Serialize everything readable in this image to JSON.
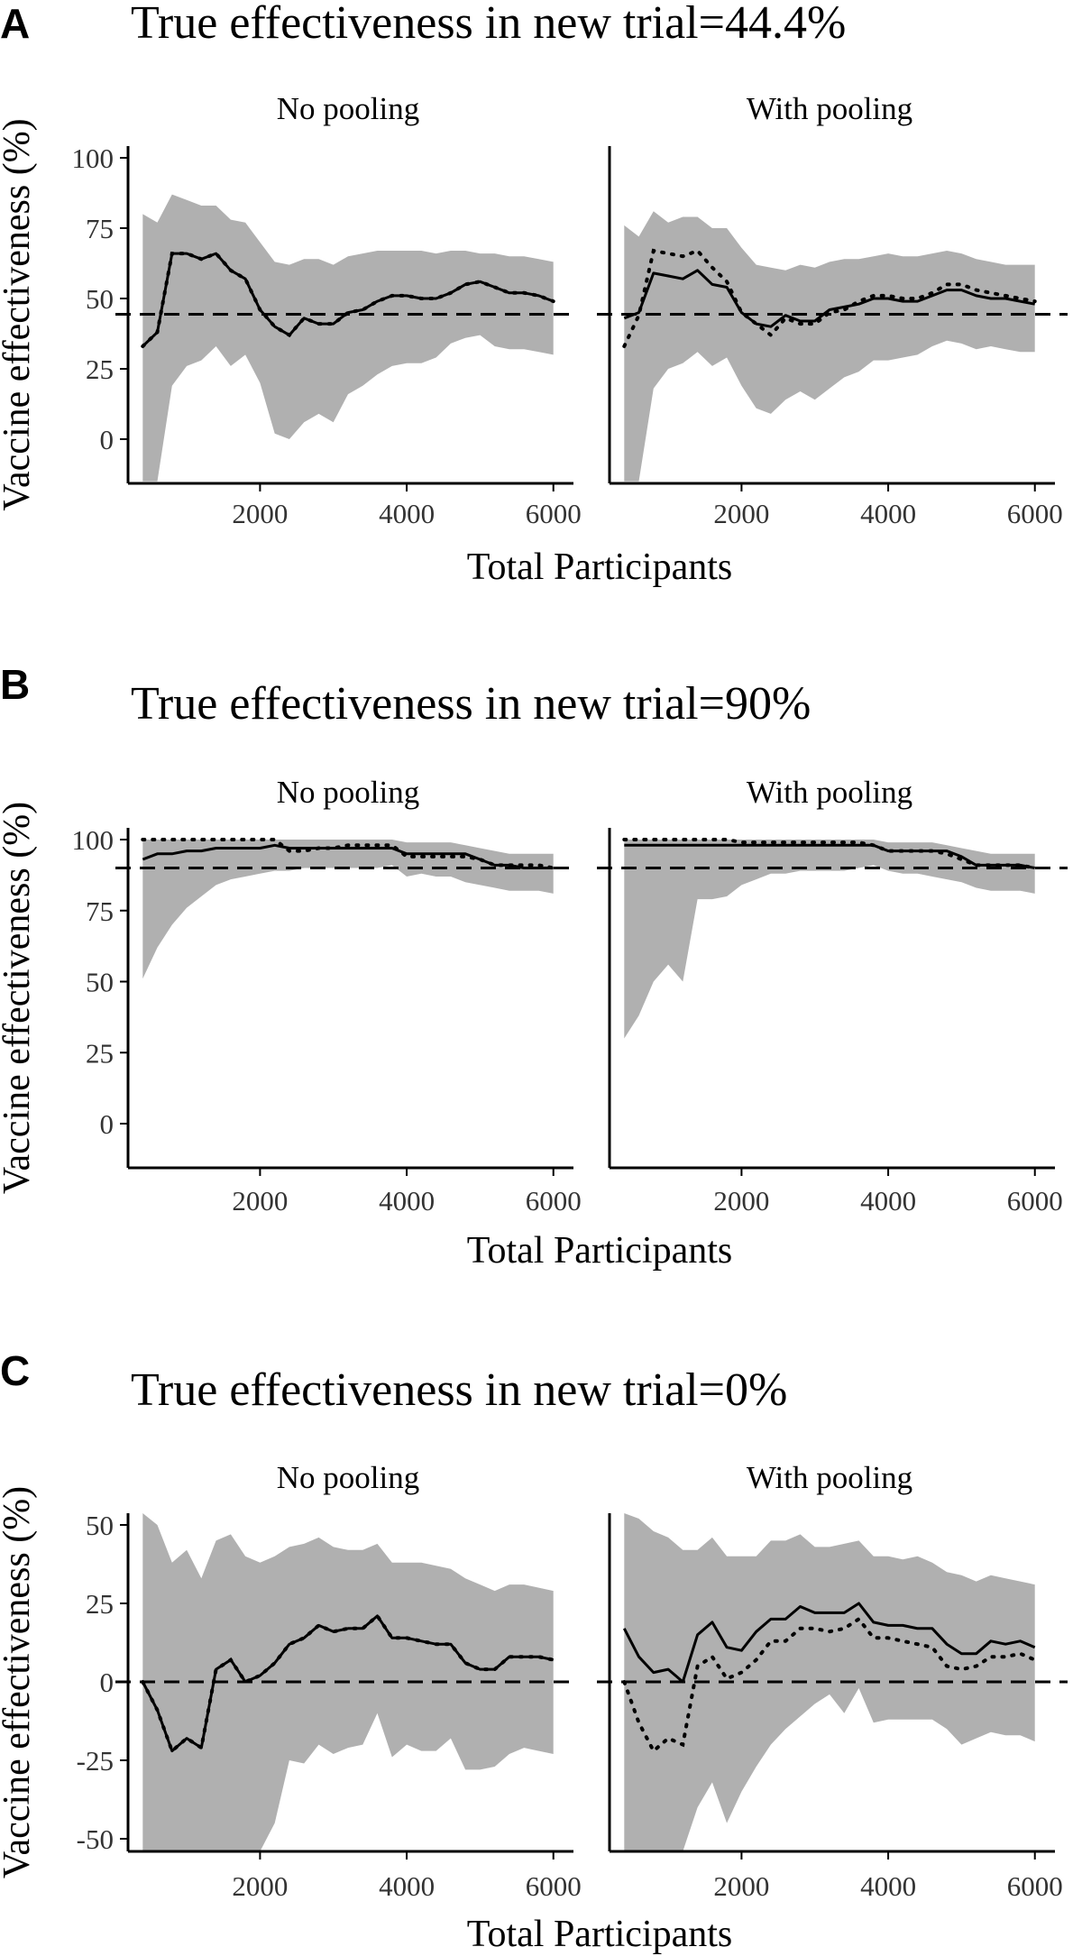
{
  "figure": {
    "x_axis_title": "Total Participants",
    "y_axis_title": "Vaccine effectiveness (%)"
  },
  "chart_data": [
    {
      "type": "line",
      "panel_letter": "A",
      "title": "True effectiveness in new trial=44.4%",
      "xlabel": "Total Participants",
      "ylabel": "Vaccine effectiveness (%)",
      "xlim": [
        200,
        6200
      ],
      "ylim": [
        -15,
        105
      ],
      "x_ticks": [
        2000,
        4000,
        6000
      ],
      "y_ticks": [
        0,
        25,
        50,
        75,
        100
      ],
      "reference_line": 44.4,
      "facets": [
        {
          "label": "No pooling",
          "x": [
            400,
            600,
            800,
            1000,
            1200,
            1400,
            1600,
            1800,
            2000,
            2200,
            2400,
            2600,
            2800,
            3000,
            3200,
            3400,
            3600,
            3800,
            4000,
            4200,
            4400,
            4600,
            4800,
            5000,
            5200,
            5400,
            5600,
            5800,
            6000
          ],
          "band_upper": [
            80,
            77,
            87,
            85,
            83,
            83,
            78,
            77,
            70,
            63,
            62,
            64,
            64,
            62,
            65,
            66,
            67,
            67,
            67,
            67,
            66,
            67,
            67,
            66,
            66,
            65,
            65,
            64,
            63
          ],
          "band_lower": [
            -15,
            -15,
            19,
            26,
            28,
            33,
            26,
            30,
            20,
            2,
            0,
            6,
            9,
            6,
            16,
            19,
            23,
            26,
            27,
            27,
            29,
            34,
            36,
            37,
            33,
            32,
            32,
            31,
            30
          ],
          "series": [
            {
              "style": "solid",
              "values": [
                33,
                38,
                66,
                66,
                64,
                66,
                60,
                57,
                46,
                40,
                37,
                43,
                41,
                41,
                45,
                46,
                49,
                51,
                51,
                50,
                50,
                52,
                55,
                56,
                54,
                52,
                52,
                51,
                49
              ]
            },
            {
              "style": "dotted",
              "values": [
                33,
                38,
                66,
                66,
                64,
                66,
                60,
                57,
                46,
                40,
                37,
                43,
                41,
                41,
                45,
                46,
                49,
                51,
                51,
                50,
                50,
                52,
                55,
                56,
                54,
                52,
                52,
                51,
                49
              ]
            }
          ]
        },
        {
          "label": "With pooling",
          "x": [
            400,
            600,
            800,
            1000,
            1200,
            1400,
            1600,
            1800,
            2000,
            2200,
            2400,
            2600,
            2800,
            3000,
            3200,
            3400,
            3600,
            3800,
            4000,
            4200,
            4400,
            4600,
            4800,
            5000,
            5200,
            5400,
            5600,
            5800,
            6000
          ],
          "band_upper": [
            76,
            72,
            81,
            77,
            79,
            79,
            75,
            75,
            68,
            62,
            61,
            60,
            62,
            61,
            63,
            64,
            64,
            65,
            66,
            65,
            65,
            66,
            67,
            66,
            64,
            63,
            62,
            62,
            62
          ],
          "band_lower": [
            -15,
            -15,
            18,
            25,
            27,
            31,
            26,
            29,
            19,
            11,
            9,
            14,
            17,
            14,
            18,
            22,
            24,
            28,
            28,
            29,
            30,
            33,
            35,
            34,
            32,
            33,
            32,
            31,
            31
          ],
          "series": [
            {
              "style": "solid",
              "values": [
                43,
                45,
                59,
                58,
                57,
                60,
                55,
                54,
                45,
                41,
                40,
                44,
                42,
                42,
                46,
                47,
                48,
                50,
                50,
                49,
                49,
                51,
                53,
                53,
                51,
                50,
                50,
                49,
                48
              ]
            },
            {
              "style": "dotted",
              "values": [
                33,
                44,
                67,
                66,
                65,
                67,
                61,
                56,
                45,
                41,
                37,
                43,
                41,
                41,
                45,
                46,
                49,
                51,
                51,
                50,
                50,
                52,
                55,
                55,
                53,
                52,
                51,
                50,
                49
              ]
            }
          ]
        }
      ]
    },
    {
      "type": "line",
      "panel_letter": "B",
      "title": "True effectiveness in new trial=90%",
      "xlabel": "Total Participants",
      "ylabel": "Vaccine effectiveness (%)",
      "xlim": [
        200,
        6200
      ],
      "ylim": [
        -15,
        105
      ],
      "x_ticks": [
        2000,
        4000,
        6000
      ],
      "y_ticks": [
        0,
        25,
        50,
        75,
        100
      ],
      "reference_line": 90,
      "facets": [
        {
          "label": "No pooling",
          "x": [
            400,
            600,
            800,
            1000,
            1200,
            1400,
            1600,
            1800,
            2000,
            2200,
            2400,
            2600,
            2800,
            3000,
            3200,
            3400,
            3600,
            3800,
            4000,
            4200,
            4400,
            4600,
            4800,
            5000,
            5200,
            5400,
            5600,
            5800,
            6000
          ],
          "band_upper": [
            100,
            100,
            100,
            100,
            100,
            100,
            100,
            100,
            100,
            100,
            100,
            100,
            100,
            100,
            100,
            100,
            100,
            100,
            99,
            99,
            99,
            99,
            98,
            97,
            96,
            95,
            95,
            95,
            95
          ],
          "band_lower": [
            51,
            62,
            70,
            76,
            80,
            84,
            86,
            87,
            88,
            89,
            89,
            90,
            90,
            90,
            90,
            90,
            90,
            91,
            87,
            88,
            87,
            87,
            85,
            84,
            83,
            82,
            82,
            82,
            81
          ],
          "series": [
            {
              "style": "solid",
              "values": [
                93,
                95,
                95,
                96,
                96,
                97,
                97,
                97,
                97,
                98,
                97,
                97,
                97,
                97,
                97,
                97,
                97,
                97,
                95,
                95,
                95,
                95,
                95,
                93,
                91,
                91,
                90,
                90,
                90
              ]
            },
            {
              "style": "dotted",
              "values": [
                100,
                100,
                100,
                100,
                100,
                100,
                100,
                100,
                100,
                100,
                96,
                96,
                97,
                97,
                98,
                98,
                98,
                98,
                94,
                94,
                94,
                94,
                94,
                93,
                91,
                91,
                91,
                91,
                90
              ]
            }
          ]
        },
        {
          "label": "With pooling",
          "x": [
            400,
            600,
            800,
            1000,
            1200,
            1400,
            1600,
            1800,
            2000,
            2200,
            2400,
            2600,
            2800,
            3000,
            3200,
            3400,
            3600,
            3800,
            4000,
            4200,
            4400,
            4600,
            4800,
            5000,
            5200,
            5400,
            5600,
            5800,
            6000
          ],
          "band_upper": [
            100,
            100,
            100,
            100,
            100,
            100,
            100,
            100,
            100,
            100,
            100,
            100,
            100,
            100,
            100,
            100,
            100,
            100,
            99,
            99,
            99,
            99,
            98,
            97,
            96,
            95,
            95,
            95,
            95
          ],
          "band_lower": [
            30,
            38,
            50,
            56,
            50,
            79,
            79,
            80,
            84,
            86,
            88,
            88,
            89,
            89,
            89,
            89,
            90,
            91,
            89,
            88,
            88,
            87,
            86,
            85,
            83,
            82,
            82,
            82,
            81
          ],
          "series": [
            {
              "style": "solid",
              "values": [
                98,
                98,
                98,
                98,
                98,
                98,
                98,
                98,
                98,
                98,
                98,
                98,
                98,
                98,
                98,
                98,
                98,
                98,
                96,
                96,
                96,
                96,
                96,
                94,
                91,
                91,
                91,
                91,
                90
              ]
            },
            {
              "style": "dotted",
              "values": [
                100,
                100,
                100,
                100,
                100,
                100,
                100,
                100,
                99,
                99,
                99,
                99,
                99,
                99,
                99,
                99,
                99,
                98,
                96,
                96,
                96,
                96,
                95,
                93,
                91,
                91,
                91,
                91,
                90
              ]
            }
          ]
        }
      ]
    },
    {
      "type": "line",
      "panel_letter": "C",
      "title": "True effectiveness in new trial=0%",
      "xlabel": "Total Participants",
      "ylabel": "Vaccine effectiveness (%)",
      "xlim": [
        200,
        6200
      ],
      "ylim": [
        -55,
        55
      ],
      "x_ticks": [
        2000,
        4000,
        6000
      ],
      "y_ticks": [
        -50,
        -25,
        0,
        25,
        50
      ],
      "reference_line": 0,
      "facets": [
        {
          "label": "No pooling",
          "x": [
            400,
            600,
            800,
            1000,
            1200,
            1400,
            1600,
            1800,
            2000,
            2200,
            2400,
            2600,
            2800,
            3000,
            3200,
            3400,
            3600,
            3800,
            4000,
            4200,
            4400,
            4600,
            4800,
            5000,
            5200,
            5400,
            5600,
            5800,
            6000
          ],
          "band_upper": [
            55,
            50,
            38,
            42,
            33,
            45,
            47,
            40,
            38,
            40,
            43,
            44,
            46,
            43,
            42,
            42,
            44,
            38,
            38,
            38,
            37,
            36,
            33,
            31,
            29,
            31,
            31,
            30,
            29
          ],
          "band_lower": [
            -55,
            -55,
            -55,
            -55,
            -55,
            -55,
            -55,
            -55,
            -55,
            -45,
            -25,
            -26,
            -20,
            -23,
            -21,
            -20,
            -10,
            -24,
            -20,
            -22,
            -22,
            -18,
            -28,
            -28,
            -27,
            -23,
            -21,
            -22,
            -23
          ],
          "series": [
            {
              "style": "solid",
              "values": [
                0,
                -9,
                -22,
                -18,
                -21,
                4,
                7,
                0,
                2,
                6,
                12,
                14,
                18,
                16,
                17,
                17,
                21,
                14,
                14,
                13,
                12,
                12,
                6,
                4,
                4,
                8,
                8,
                8,
                7
              ]
            },
            {
              "style": "dotted",
              "values": [
                0,
                -9,
                -22,
                -18,
                -21,
                4,
                7,
                0,
                2,
                6,
                12,
                14,
                18,
                16,
                17,
                17,
                21,
                14,
                14,
                13,
                12,
                12,
                6,
                4,
                4,
                8,
                8,
                8,
                7
              ]
            }
          ]
        },
        {
          "label": "With pooling",
          "x": [
            400,
            600,
            800,
            1000,
            1200,
            1400,
            1600,
            1800,
            2000,
            2200,
            2400,
            2600,
            2800,
            3000,
            3200,
            3400,
            3600,
            3800,
            4000,
            4200,
            4400,
            4600,
            4800,
            5000,
            5200,
            5400,
            5600,
            5800,
            6000
          ],
          "band_upper": [
            55,
            52,
            48,
            46,
            42,
            42,
            46,
            40,
            40,
            40,
            45,
            45,
            47,
            43,
            43,
            44,
            45,
            40,
            40,
            39,
            40,
            38,
            35,
            34,
            32,
            34,
            33,
            32,
            31
          ],
          "band_lower": [
            -55,
            -55,
            -55,
            -55,
            -55,
            -40,
            -32,
            -45,
            -35,
            -27,
            -20,
            -15,
            -11,
            -7,
            -4,
            -10,
            -2,
            -13,
            -12,
            -12,
            -12,
            -12,
            -15,
            -20,
            -18,
            -16,
            -17,
            -17,
            -19
          ],
          "series": [
            {
              "style": "solid",
              "values": [
                17,
                8,
                3,
                4,
                0,
                15,
                19,
                11,
                10,
                16,
                20,
                20,
                24,
                22,
                22,
                22,
                25,
                19,
                18,
                18,
                17,
                17,
                12,
                9,
                9,
                13,
                12,
                13,
                11
              ]
            },
            {
              "style": "dotted",
              "values": [
                0,
                -13,
                -22,
                -18,
                -20,
                5,
                8,
                1,
                3,
                7,
                13,
                13,
                17,
                17,
                16,
                17,
                20,
                14,
                14,
                13,
                12,
                11,
                5,
                4,
                5,
                8,
                8,
                9,
                7
              ]
            }
          ]
        }
      ]
    }
  ]
}
